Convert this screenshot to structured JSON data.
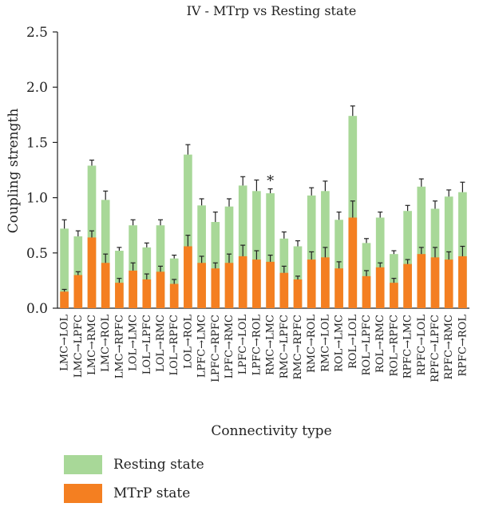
{
  "chart_data": {
    "type": "bar",
    "stacked": true,
    "title": "IV - MTrp vs Resting state",
    "xlabel": "Connectivity type",
    "ylabel": "Coupling strength",
    "ylim": [
      0,
      2.5
    ],
    "yticks": [
      "0.0",
      "0.5",
      "1.0",
      "1.5",
      "2.0",
      "2.5"
    ],
    "grid": false,
    "legend_position": "bottom-left",
    "categories": [
      "LMC→LOL",
      "LMC→LPFC",
      "LMC→RMC",
      "LMC→ROL",
      "LMC→RPFC",
      "LOL→LMC",
      "LOL→LPFC",
      "LOL→RMC",
      "LOL→RPFC",
      "LOL→ROL",
      "LPFC→LMC",
      "LPFC→RPFC",
      "LPFC→RMC",
      "LPFC→LOL",
      "LPFC→ROL",
      "RMC→LMC",
      "RMC→LPFC",
      "RMC→RPFC",
      "RMC→ROL",
      "RMC→LOL",
      "ROL→LMC",
      "ROL→LOL",
      "ROL→LPFC",
      "ROL→RMC",
      "ROL→RPFC",
      "RPFC→LMC",
      "RPFC→LOL",
      "RPFC→LPFC",
      "RPFC→RMC",
      "RPFC→ROL"
    ],
    "series": [
      {
        "name": "MTrP state",
        "color": "#f47f21",
        "values": [
          0.15,
          0.3,
          0.64,
          0.41,
          0.23,
          0.34,
          0.26,
          0.33,
          0.22,
          0.56,
          0.41,
          0.36,
          0.41,
          0.47,
          0.44,
          0.42,
          0.32,
          0.26,
          0.44,
          0.46,
          0.36,
          0.82,
          0.29,
          0.37,
          0.23,
          0.4,
          0.49,
          0.46,
          0.44,
          0.47
        ],
        "errors": [
          0.02,
          0.03,
          0.06,
          0.08,
          0.04,
          0.07,
          0.05,
          0.05,
          0.04,
          0.1,
          0.06,
          0.05,
          0.08,
          0.1,
          0.08,
          0.06,
          0.06,
          0.03,
          0.07,
          0.09,
          0.06,
          0.15,
          0.05,
          0.04,
          0.04,
          0.04,
          0.06,
          0.09,
          0.07,
          0.09
        ]
      },
      {
        "name": "Resting state",
        "color": "#a8d898",
        "values": [
          0.72,
          0.65,
          1.29,
          0.98,
          0.52,
          0.75,
          0.55,
          0.75,
          0.45,
          1.39,
          0.93,
          0.78,
          0.92,
          1.11,
          1.06,
          1.04,
          0.63,
          0.56,
          1.02,
          1.06,
          0.8,
          1.74,
          0.59,
          0.82,
          0.49,
          0.88,
          1.1,
          0.9,
          1.01,
          1.05
        ],
        "errors": [
          0.08,
          0.05,
          0.05,
          0.08,
          0.03,
          0.05,
          0.04,
          0.05,
          0.03,
          0.09,
          0.06,
          0.09,
          0.07,
          0.08,
          0.1,
          0.04,
          0.06,
          0.05,
          0.07,
          0.09,
          0.07,
          0.09,
          0.04,
          0.05,
          0.03,
          0.05,
          0.07,
          0.07,
          0.06,
          0.09
        ]
      }
    ],
    "annotations": [
      {
        "category": "RMC→LMC",
        "text": "*"
      }
    ]
  },
  "legend": {
    "resting_label": "Resting state",
    "mtrp_label": "MTrP state"
  }
}
